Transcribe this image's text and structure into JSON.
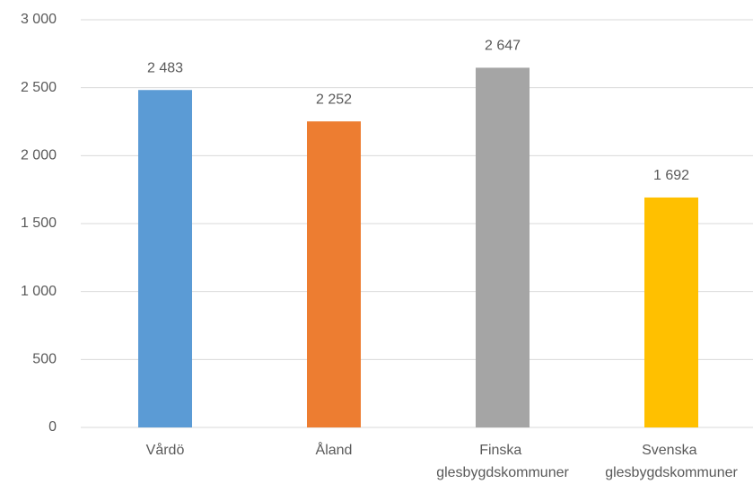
{
  "chart_data": {
    "type": "bar",
    "categories": [
      "Vårdö",
      "Åland",
      "Finska glesbygdskommuner",
      "Svenska glesbygdskommuner"
    ],
    "values": [
      2483,
      2252,
      2647,
      1692
    ],
    "value_labels": [
      "2 483",
      "2 252",
      "2 647",
      "1 692"
    ],
    "colors": [
      "#5b9bd5",
      "#ed7d31",
      "#a5a5a5",
      "#ffc000"
    ],
    "ylim": [
      0,
      3000
    ],
    "yticks": [
      {
        "value": 0,
        "label": "0"
      },
      {
        "value": 500,
        "label": "500"
      },
      {
        "value": 1000,
        "label": "1 000"
      },
      {
        "value": 1500,
        "label": "1 500"
      },
      {
        "value": 2000,
        "label": "2 000"
      },
      {
        "value": 2500,
        "label": "2 500"
      },
      {
        "value": 3000,
        "label": "3 000"
      }
    ],
    "grid": true
  }
}
